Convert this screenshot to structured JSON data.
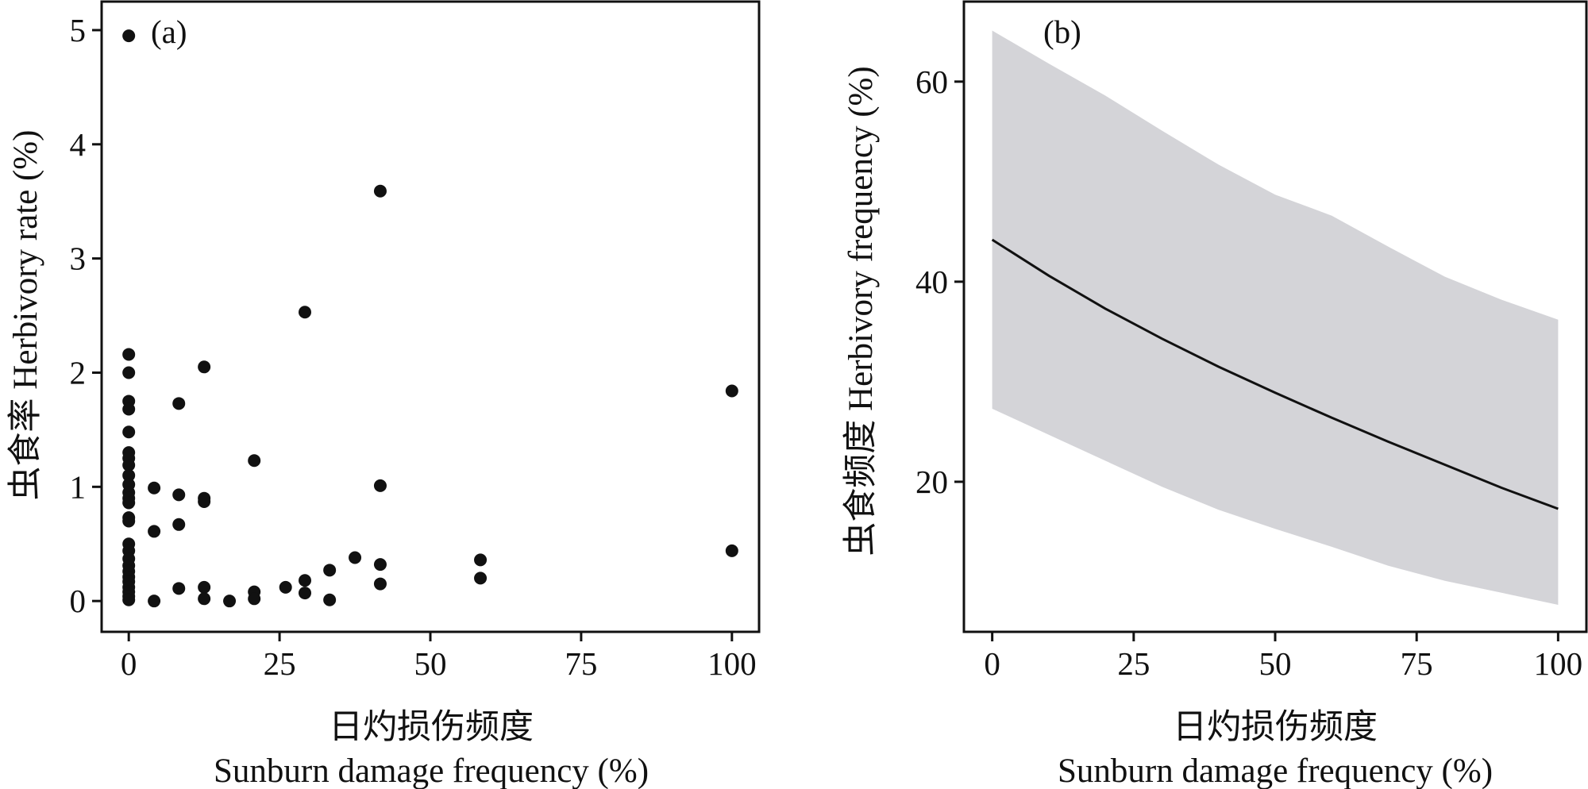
{
  "chart_data": [
    {
      "type": "scatter",
      "panel_label": "(a)",
      "xlabel": "日灼损伤频度",
      "xlabel_en": "Sunburn damage frequency (%)",
      "ylabel": "虫食率 Herbivory rate (%)",
      "xlim": [
        -4.5,
        104.5
      ],
      "ylim": [
        -0.27,
        5.25
      ],
      "xticks": [
        "0",
        "25",
        "50",
        "75",
        "100"
      ],
      "yticks": [
        "0",
        "1",
        "2",
        "3",
        "4",
        "5"
      ],
      "grid": false,
      "legend": "none",
      "marker_color": "#111111",
      "points": [
        {
          "x": 0,
          "y": 4.95
        },
        {
          "x": 0,
          "y": 2.16
        },
        {
          "x": 0,
          "y": 2.0
        },
        {
          "x": 0,
          "y": 1.75
        },
        {
          "x": 0,
          "y": 1.68
        },
        {
          "x": 0,
          "y": 1.48
        },
        {
          "x": 0,
          "y": 1.3
        },
        {
          "x": 0,
          "y": 1.25
        },
        {
          "x": 0,
          "y": 1.19
        },
        {
          "x": 0,
          "y": 1.1
        },
        {
          "x": 0,
          "y": 1.02
        },
        {
          "x": 0,
          "y": 0.95
        },
        {
          "x": 0,
          "y": 0.9
        },
        {
          "x": 0,
          "y": 0.86
        },
        {
          "x": 0,
          "y": 0.73
        },
        {
          "x": 0,
          "y": 0.7
        },
        {
          "x": 0,
          "y": 0.5
        },
        {
          "x": 0,
          "y": 0.44
        },
        {
          "x": 0,
          "y": 0.37
        },
        {
          "x": 0,
          "y": 0.31
        },
        {
          "x": 0,
          "y": 0.26
        },
        {
          "x": 0,
          "y": 0.21
        },
        {
          "x": 0,
          "y": 0.17
        },
        {
          "x": 0,
          "y": 0.12
        },
        {
          "x": 0,
          "y": 0.08
        },
        {
          "x": 0,
          "y": 0.04
        },
        {
          "x": 0,
          "y": 0.01
        },
        {
          "x": 4.2,
          "y": 0.99
        },
        {
          "x": 4.2,
          "y": 0.61
        },
        {
          "x": 4.2,
          "y": 0.0
        },
        {
          "x": 8.3,
          "y": 1.73
        },
        {
          "x": 8.3,
          "y": 0.93
        },
        {
          "x": 8.3,
          "y": 0.67
        },
        {
          "x": 8.3,
          "y": 0.11
        },
        {
          "x": 12.5,
          "y": 2.05
        },
        {
          "x": 12.5,
          "y": 0.9
        },
        {
          "x": 12.5,
          "y": 0.87
        },
        {
          "x": 12.5,
          "y": 0.12
        },
        {
          "x": 12.5,
          "y": 0.02
        },
        {
          "x": 16.7,
          "y": 0.0
        },
        {
          "x": 20.8,
          "y": 1.23
        },
        {
          "x": 20.8,
          "y": 0.08
        },
        {
          "x": 20.8,
          "y": 0.02
        },
        {
          "x": 26.0,
          "y": 0.12
        },
        {
          "x": 29.2,
          "y": 2.53
        },
        {
          "x": 29.2,
          "y": 0.18
        },
        {
          "x": 29.2,
          "y": 0.07
        },
        {
          "x": 33.3,
          "y": 0.27
        },
        {
          "x": 33.3,
          "y": 0.01
        },
        {
          "x": 37.5,
          "y": 0.38
        },
        {
          "x": 41.7,
          "y": 3.59
        },
        {
          "x": 41.7,
          "y": 1.01
        },
        {
          "x": 41.7,
          "y": 0.32
        },
        {
          "x": 41.7,
          "y": 0.15
        },
        {
          "x": 58.3,
          "y": 0.36
        },
        {
          "x": 58.3,
          "y": 0.2
        },
        {
          "x": 100,
          "y": 1.84
        },
        {
          "x": 100,
          "y": 0.44
        }
      ]
    },
    {
      "type": "line",
      "panel_label": "(b)",
      "xlabel": "日灼损伤频度",
      "xlabel_en": "Sunburn damage frequency (%)",
      "ylabel": "虫食频度 Herbivory frequency (%)",
      "xlim": [
        -5,
        105
      ],
      "ylim": [
        5,
        68
      ],
      "xticks": [
        "0",
        "25",
        "50",
        "75",
        "100"
      ],
      "yticks": [
        "20",
        "40",
        "60"
      ],
      "grid": false,
      "legend": "none",
      "line_color": "#111111",
      "band_color": "#d4d4d8",
      "x": [
        0,
        10,
        20,
        30,
        40,
        50,
        60,
        70,
        80,
        90,
        100
      ],
      "fit": [
        44.2,
        40.6,
        37.3,
        34.3,
        31.5,
        28.9,
        26.4,
        24.0,
        21.7,
        19.4,
        17.3
      ],
      "ci_upper": [
        65.1,
        61.8,
        58.6,
        55.1,
        51.7,
        48.7,
        46.6,
        43.5,
        40.5,
        38.2,
        36.2
      ],
      "ci_lower": [
        27.3,
        24.7,
        22.1,
        19.5,
        17.2,
        15.3,
        13.5,
        11.6,
        10.1,
        8.9,
        7.7
      ]
    }
  ]
}
